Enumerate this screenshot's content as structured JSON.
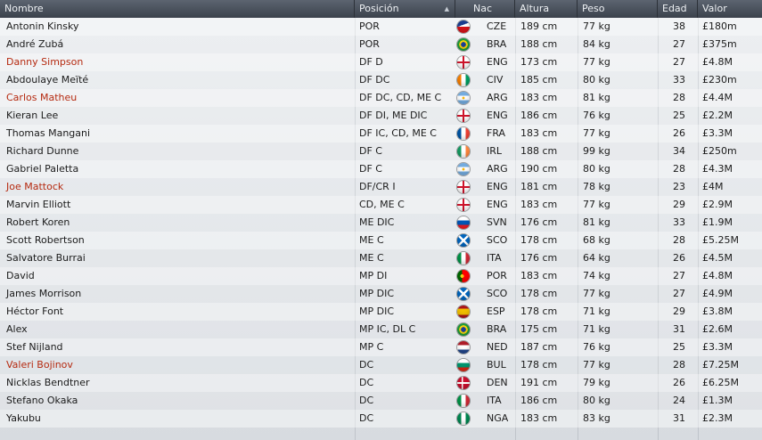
{
  "columns": {
    "nombre": "Nombre",
    "posicion": "Posición",
    "nac": "Nac",
    "altura": "Altura",
    "peso": "Peso",
    "edad": "Edad",
    "valor": "Valor"
  },
  "sort_indicator": "▲",
  "players": [
    {
      "name": "Antonin Kinsky",
      "pos": "POR",
      "flag": "czech-flag-icon",
      "nac": "CZE",
      "height": "189 cm",
      "weight": "77 kg",
      "age": "38",
      "value": "£180m",
      "loan": false
    },
    {
      "name": "André Zubá",
      "pos": "POR",
      "flag": "brazil-flag-icon",
      "nac": "BRA",
      "height": "188 cm",
      "weight": "84 kg",
      "age": "27",
      "value": "£375m",
      "loan": false
    },
    {
      "name": "Danny Simpson",
      "pos": "DF D",
      "flag": "england-flag-icon",
      "nac": "ENG",
      "height": "173 cm",
      "weight": "77 kg",
      "age": "27",
      "value": "£4.8M",
      "loan": true
    },
    {
      "name": "Abdoulaye Meïté",
      "pos": "DF DC",
      "flag": "ivory-coast-flag-icon",
      "nac": "CIV",
      "height": "185 cm",
      "weight": "80 kg",
      "age": "33",
      "value": "£230m",
      "loan": false
    },
    {
      "name": "Carlos Matheu",
      "pos": "DF DC, CD, ME C",
      "flag": "argentina-flag-icon",
      "nac": "ARG",
      "height": "183 cm",
      "weight": "81 kg",
      "age": "28",
      "value": "£4.4M",
      "loan": true
    },
    {
      "name": "Kieran Lee",
      "pos": "DF DI, ME DIC",
      "flag": "england-flag-icon",
      "nac": "ENG",
      "height": "186 cm",
      "weight": "76 kg",
      "age": "25",
      "value": "£2.2M",
      "loan": false
    },
    {
      "name": "Thomas Mangani",
      "pos": "DF IC, CD, ME C",
      "flag": "france-flag-icon",
      "nac": "FRA",
      "height": "183 cm",
      "weight": "77 kg",
      "age": "26",
      "value": "£3.3M",
      "loan": false
    },
    {
      "name": "Richard Dunne",
      "pos": "DF C",
      "flag": "ireland-flag-icon",
      "nac": "IRL",
      "height": "188 cm",
      "weight": "99 kg",
      "age": "34",
      "value": "£250m",
      "loan": false
    },
    {
      "name": "Gabriel Paletta",
      "pos": "DF C",
      "flag": "argentina-flag-icon",
      "nac": "ARG",
      "height": "190 cm",
      "weight": "80 kg",
      "age": "28",
      "value": "£4.3M",
      "loan": false
    },
    {
      "name": "Joe Mattock",
      "pos": "DF/CR I",
      "flag": "england-flag-icon",
      "nac": "ENG",
      "height": "181 cm",
      "weight": "78 kg",
      "age": "23",
      "value": "£4M",
      "loan": true
    },
    {
      "name": "Marvin Elliott",
      "pos": "CD, ME C",
      "flag": "england-flag-icon",
      "nac": "ENG",
      "height": "183 cm",
      "weight": "77 kg",
      "age": "29",
      "value": "£2.9M",
      "loan": false
    },
    {
      "name": "Robert Koren",
      "pos": "ME DIC",
      "flag": "slovenia-flag-icon",
      "nac": "SVN",
      "height": "176 cm",
      "weight": "81 kg",
      "age": "33",
      "value": "£1.9M",
      "loan": false
    },
    {
      "name": "Scott Robertson",
      "pos": "ME C",
      "flag": "scotland-flag-icon",
      "nac": "SCO",
      "height": "178 cm",
      "weight": "68 kg",
      "age": "28",
      "value": "£5.25M",
      "loan": false
    },
    {
      "name": "Salvatore Burrai",
      "pos": "ME C",
      "flag": "italy-flag-icon",
      "nac": "ITA",
      "height": "176 cm",
      "weight": "64 kg",
      "age": "26",
      "value": "£4.5M",
      "loan": false
    },
    {
      "name": "David",
      "pos": "MP DI",
      "flag": "portugal-flag-icon",
      "nac": "POR",
      "height": "183 cm",
      "weight": "74 kg",
      "age": "27",
      "value": "£4.8M",
      "loan": false
    },
    {
      "name": "James Morrison",
      "pos": "MP DIC",
      "flag": "scotland-flag-icon",
      "nac": "SCO",
      "height": "178 cm",
      "weight": "77 kg",
      "age": "27",
      "value": "£4.9M",
      "loan": false
    },
    {
      "name": "Héctor Font",
      "pos": "MP DIC",
      "flag": "spain-flag-icon",
      "nac": "ESP",
      "height": "178 cm",
      "weight": "71 kg",
      "age": "29",
      "value": "£3.8M",
      "loan": false
    },
    {
      "name": "Alex",
      "pos": "MP IC, DL C",
      "flag": "brazil-flag-icon",
      "nac": "BRA",
      "height": "175 cm",
      "weight": "71 kg",
      "age": "31",
      "value": "£2.6M",
      "loan": false
    },
    {
      "name": "Stef Nijland",
      "pos": "MP C",
      "flag": "netherlands-flag-icon",
      "nac": "NED",
      "height": "187 cm",
      "weight": "76 kg",
      "age": "25",
      "value": "£3.3M",
      "loan": false
    },
    {
      "name": "Valeri Bojinov",
      "pos": "DC",
      "flag": "bulgaria-flag-icon",
      "nac": "BUL",
      "height": "178 cm",
      "weight": "77 kg",
      "age": "28",
      "value": "£7.25M",
      "loan": true
    },
    {
      "name": "Nicklas Bendtner",
      "pos": "DC",
      "flag": "denmark-flag-icon",
      "nac": "DEN",
      "height": "191 cm",
      "weight": "79 kg",
      "age": "26",
      "value": "£6.25M",
      "loan": false
    },
    {
      "name": "Stefano Okaka",
      "pos": "DC",
      "flag": "italy-flag-icon",
      "nac": "ITA",
      "height": "186 cm",
      "weight": "80 kg",
      "age": "24",
      "value": "£1.3M",
      "loan": false
    },
    {
      "name": "Yakubu",
      "pos": "DC",
      "flag": "nigeria-flag-icon",
      "nac": "NGA",
      "height": "183 cm",
      "weight": "83 kg",
      "age": "31",
      "value": "£2.3M",
      "loan": false
    }
  ],
  "colors": {
    "header_bg": "#4a525c",
    "loan_name": "#b52a10",
    "text": "#1b1b1b"
  }
}
